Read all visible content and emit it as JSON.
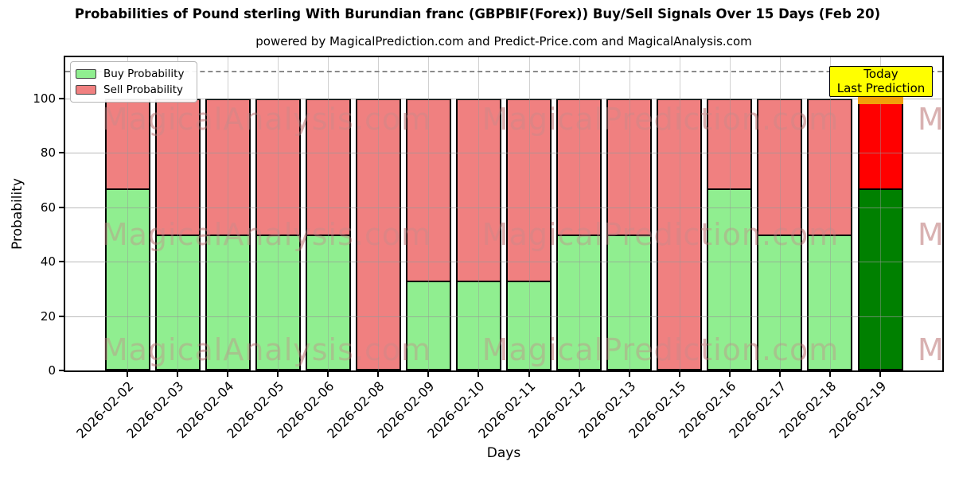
{
  "title": "Probabilities of Pound sterling With Burundian franc (GBPBIF(Forex)) Buy/Sell Signals Over 15 Days (Feb 20)",
  "subtitle": "powered by MagicalPrediction.com and Predict-Price.com and MagicalAnalysis.com",
  "watermarks": [
    "MagicalAnalysis.com",
    "MagicalPrediction.com"
  ],
  "legend": {
    "items": [
      {
        "label": "Buy Probability",
        "color": "#90ee90"
      },
      {
        "label": "Sell Probability",
        "color": "#f08080"
      }
    ]
  },
  "annotation": {
    "lines": [
      "Today",
      "Last Prediction"
    ],
    "bg_color": "#ffff00",
    "strip_color": "#f1a10a"
  },
  "chart_data": {
    "type": "bar",
    "stacked": true,
    "title": "Probabilities of Pound sterling With Burundian franc (GBPBIF(Forex)) Buy/Sell Signals Over 15 Days (Feb 20)",
    "xlabel": "Days",
    "ylabel": "Probability",
    "categories": [
      "2026-02-02",
      "2026-02-03",
      "2026-02-04",
      "2026-02-05",
      "2026-02-06",
      "2026-02-08",
      "2026-02-09",
      "2026-02-10",
      "2026-02-11",
      "2026-02-12",
      "2026-02-13",
      "2026-02-15",
      "2026-02-16",
      "2026-02-17",
      "2026-02-18",
      "2026-02-19"
    ],
    "series": [
      {
        "name": "Buy Probability",
        "color": "#90ee90",
        "values": [
          67,
          50,
          50,
          50,
          50,
          0,
          33,
          33,
          33,
          50,
          50,
          0,
          67,
          50,
          50,
          67
        ]
      },
      {
        "name": "Sell Probability",
        "color": "#f08080",
        "values": [
          33,
          50,
          50,
          50,
          50,
          100,
          67,
          67,
          67,
          50,
          50,
          100,
          33,
          50,
          50,
          33
        ]
      }
    ],
    "today_index": 15,
    "today_colors": {
      "buy": "#008000",
      "sell": "#ff0000"
    },
    "yticks": [
      0,
      20,
      40,
      60,
      80,
      100
    ],
    "ylim": [
      0,
      116
    ],
    "dashed_line_y": 110,
    "grid": true,
    "legend_position": "upper left"
  }
}
